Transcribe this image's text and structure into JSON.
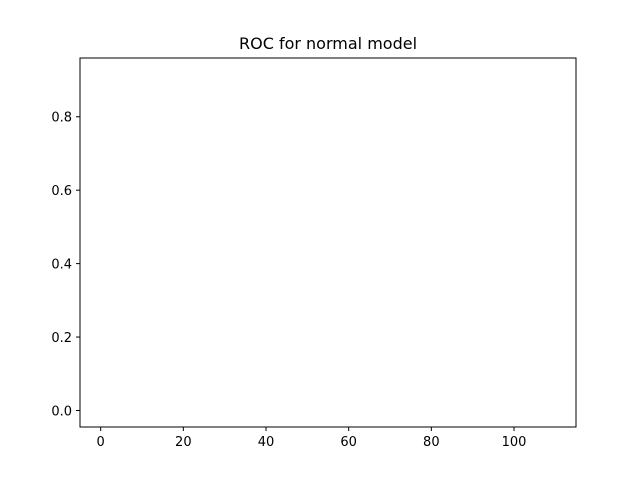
{
  "chart_data": {
    "type": "line",
    "title": "ROC for normal model",
    "xlabel": "",
    "ylabel": "",
    "xlim": [
      -5,
      115
    ],
    "ylim": [
      -0.045,
      0.96
    ],
    "xticks": [
      0,
      20,
      40,
      60,
      80,
      100
    ],
    "xtick_labels": [
      "0",
      "20",
      "40",
      "60",
      "80",
      "100"
    ],
    "yticks": [
      0.0,
      0.2,
      0.4,
      0.6,
      0.8
    ],
    "ytick_labels": [
      "0.0",
      "0.2",
      "0.4",
      "0.6",
      "0.8"
    ],
    "grid": false,
    "series": []
  }
}
